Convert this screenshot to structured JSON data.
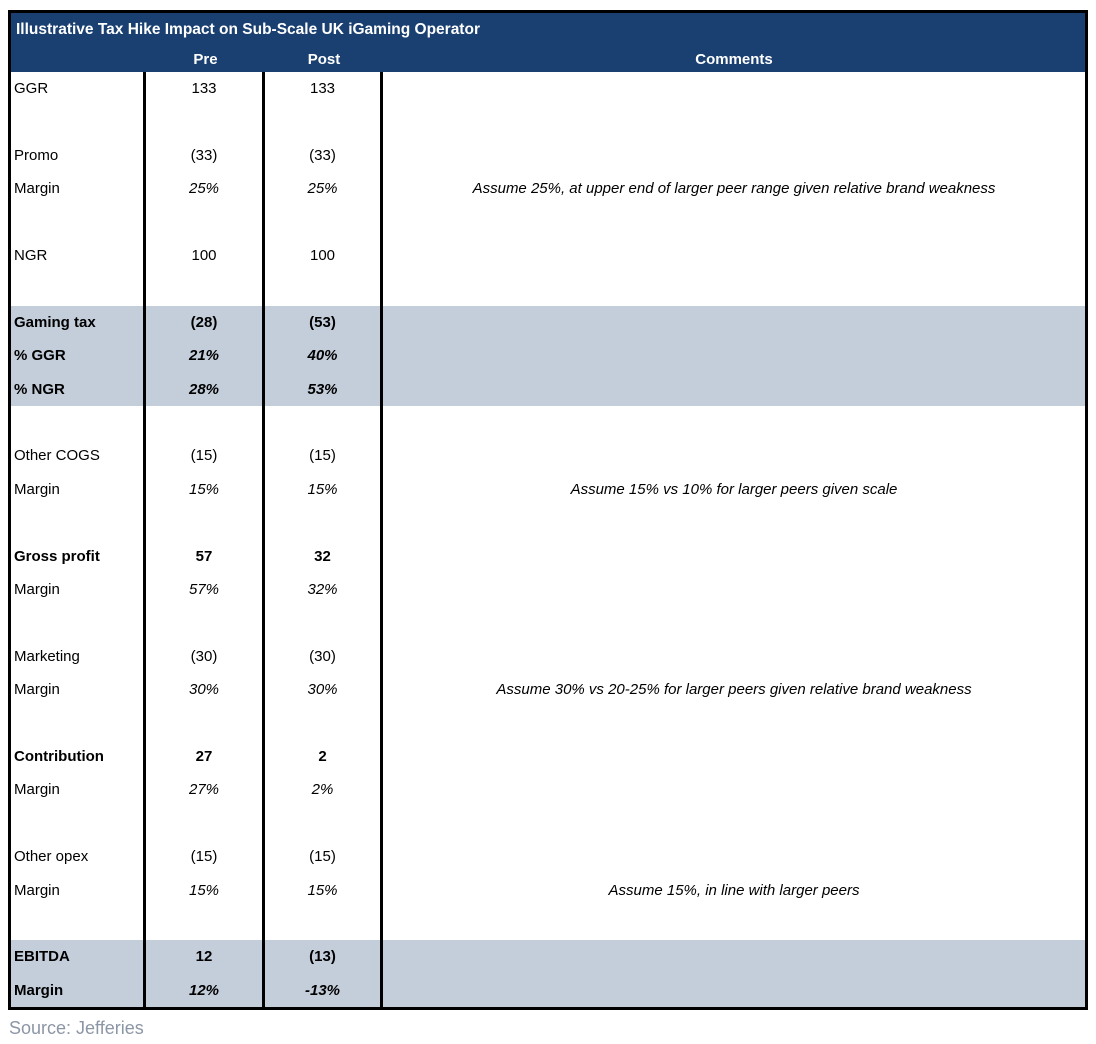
{
  "table": {
    "title": "Illustrative Tax Hike Impact on Sub-Scale UK iGaming Operator",
    "columns": {
      "label": "",
      "pre": "Pre",
      "post": "Post",
      "comments": "Comments"
    },
    "rows": [
      {
        "label": "GGR",
        "pre": "133",
        "post": "133",
        "comment": "",
        "style": "normal",
        "highlight": false
      },
      {
        "label": "",
        "pre": "",
        "post": "",
        "comment": "",
        "style": "normal",
        "highlight": false
      },
      {
        "label": "Promo",
        "pre": "(33)",
        "post": "(33)",
        "comment": "",
        "style": "normal",
        "highlight": false
      },
      {
        "label": "Margin",
        "pre": "25%",
        "post": "25%",
        "comment": "Assume 25%, at upper end of larger peer range given relative brand weakness",
        "style": "margin",
        "highlight": false
      },
      {
        "label": "",
        "pre": "",
        "post": "",
        "comment": "",
        "style": "normal",
        "highlight": false
      },
      {
        "label": "NGR",
        "pre": "100",
        "post": "100",
        "comment": "",
        "style": "normal",
        "highlight": false
      },
      {
        "label": "",
        "pre": "",
        "post": "",
        "comment": "",
        "style": "normal",
        "highlight": false
      },
      {
        "label": "Gaming tax",
        "pre": "(28)",
        "post": "(53)",
        "comment": "",
        "style": "bold",
        "highlight": true
      },
      {
        "label": "% GGR",
        "pre": "21%",
        "post": "40%",
        "comment": "",
        "style": "bold-margin",
        "highlight": true
      },
      {
        "label": "% NGR",
        "pre": "28%",
        "post": "53%",
        "comment": "",
        "style": "bold-margin",
        "highlight": true
      },
      {
        "label": "",
        "pre": "",
        "post": "",
        "comment": "",
        "style": "normal",
        "highlight": false
      },
      {
        "label": "Other COGS",
        "pre": "(15)",
        "post": "(15)",
        "comment": "",
        "style": "normal",
        "highlight": false
      },
      {
        "label": "Margin",
        "pre": "15%",
        "post": "15%",
        "comment": "Assume 15% vs 10% for larger peers given scale",
        "style": "margin",
        "highlight": false
      },
      {
        "label": "",
        "pre": "",
        "post": "",
        "comment": "",
        "style": "normal",
        "highlight": false
      },
      {
        "label": "Gross profit",
        "pre": "57",
        "post": "32",
        "comment": "",
        "style": "bold",
        "highlight": false
      },
      {
        "label": "Margin",
        "pre": "57%",
        "post": "32%",
        "comment": "",
        "style": "margin",
        "highlight": false
      },
      {
        "label": "",
        "pre": "",
        "post": "",
        "comment": "",
        "style": "normal",
        "highlight": false
      },
      {
        "label": "Marketing",
        "pre": "(30)",
        "post": "(30)",
        "comment": "",
        "style": "normal",
        "highlight": false
      },
      {
        "label": "Margin",
        "pre": "30%",
        "post": "30%",
        "comment": "Assume 30% vs 20-25% for larger peers given relative brand weakness",
        "style": "margin",
        "highlight": false
      },
      {
        "label": "",
        "pre": "",
        "post": "",
        "comment": "",
        "style": "normal",
        "highlight": false
      },
      {
        "label": "Contribution",
        "pre": "27",
        "post": "2",
        "comment": "",
        "style": "bold",
        "highlight": false
      },
      {
        "label": "Margin",
        "pre": "27%",
        "post": "2%",
        "comment": "",
        "style": "margin",
        "highlight": false
      },
      {
        "label": "",
        "pre": "",
        "post": "",
        "comment": "",
        "style": "normal",
        "highlight": false
      },
      {
        "label": "Other opex",
        "pre": "(15)",
        "post": "(15)",
        "comment": "",
        "style": "normal",
        "highlight": false
      },
      {
        "label": "Margin",
        "pre": "15%",
        "post": "15%",
        "comment": "Assume 15%, in line with larger peers",
        "style": "margin",
        "highlight": false
      },
      {
        "label": "",
        "pre": "",
        "post": "",
        "comment": "",
        "style": "normal",
        "highlight": false
      },
      {
        "label": "EBITDA",
        "pre": "12",
        "post": "(13)",
        "comment": "",
        "style": "bold",
        "highlight": true
      },
      {
        "label": "Margin",
        "pre": "12%",
        "post": "-13%",
        "comment": "",
        "style": "bold-margin",
        "highlight": true
      }
    ]
  },
  "source": "Source: Jefferies",
  "colors": {
    "header_navy": "#1a4071",
    "highlight": "#c4cedb",
    "border": "#000000",
    "source_gray": "#8c96a5"
  }
}
